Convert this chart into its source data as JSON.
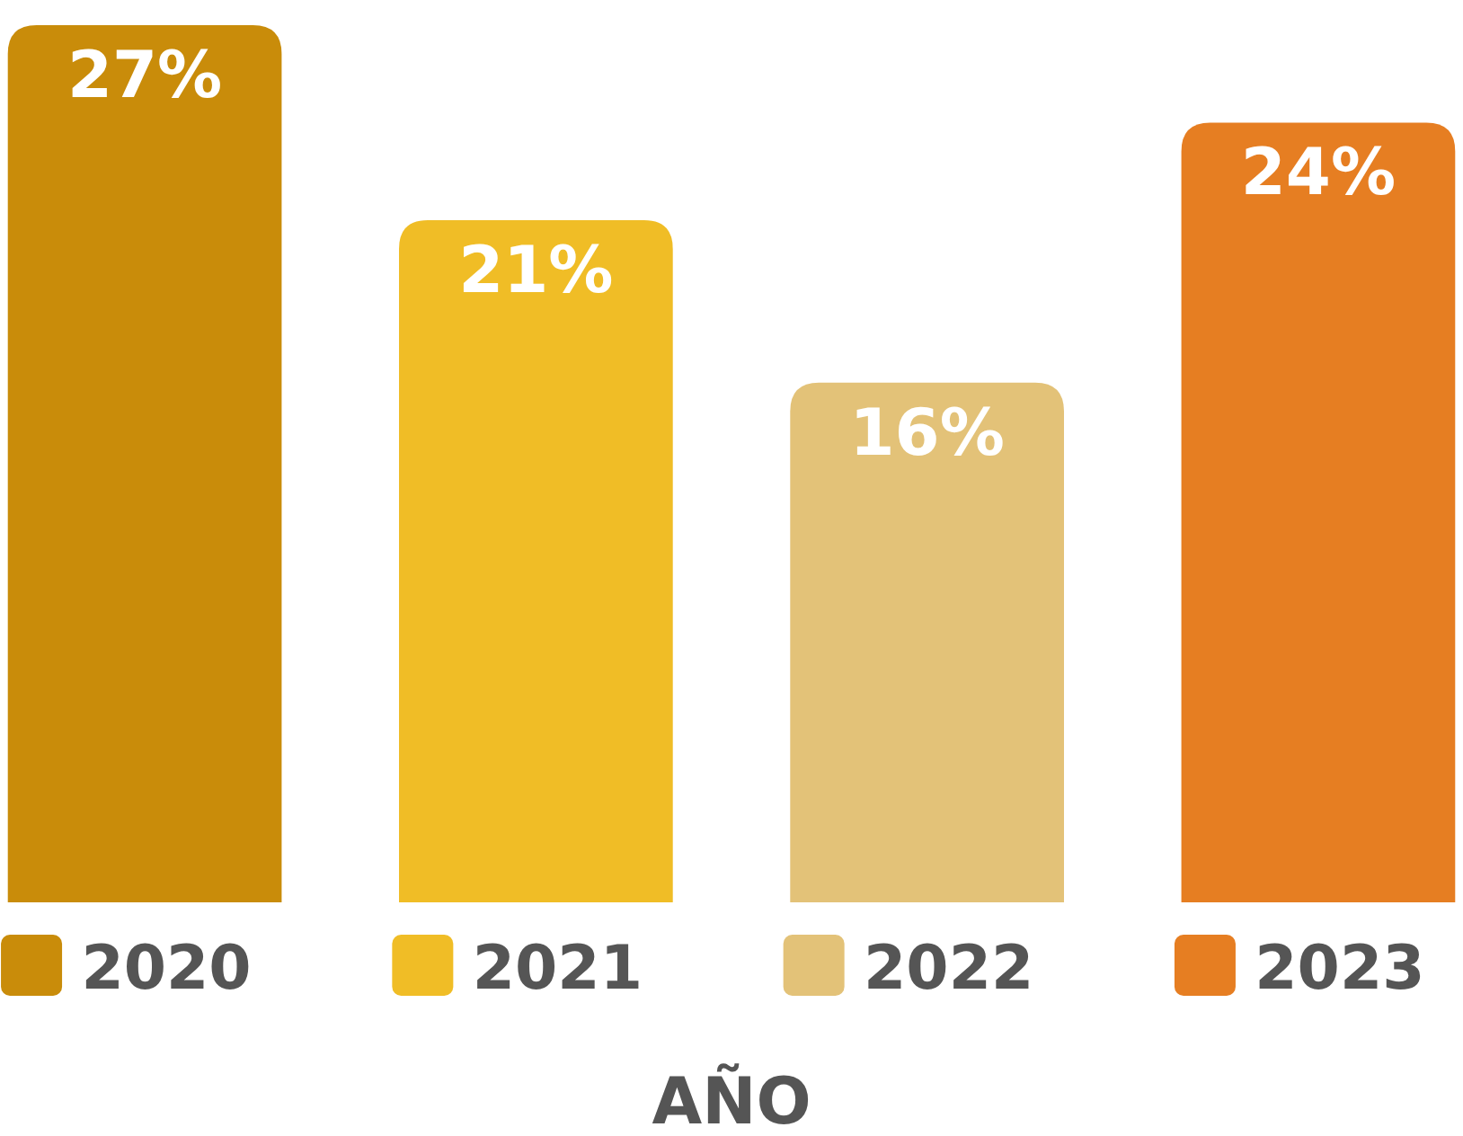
{
  "chart_data": {
    "type": "bar",
    "xlabel": "AÑO",
    "categories": [
      "2020",
      "2021",
      "2022",
      "2023"
    ],
    "values": [
      27,
      21,
      16,
      24
    ],
    "colors": [
      "#c98c0a",
      "#f0bd26",
      "#e3c278",
      "#e67e22"
    ],
    "value_labels": [
      "27%",
      "21%",
      "16%",
      "24%"
    ]
  }
}
